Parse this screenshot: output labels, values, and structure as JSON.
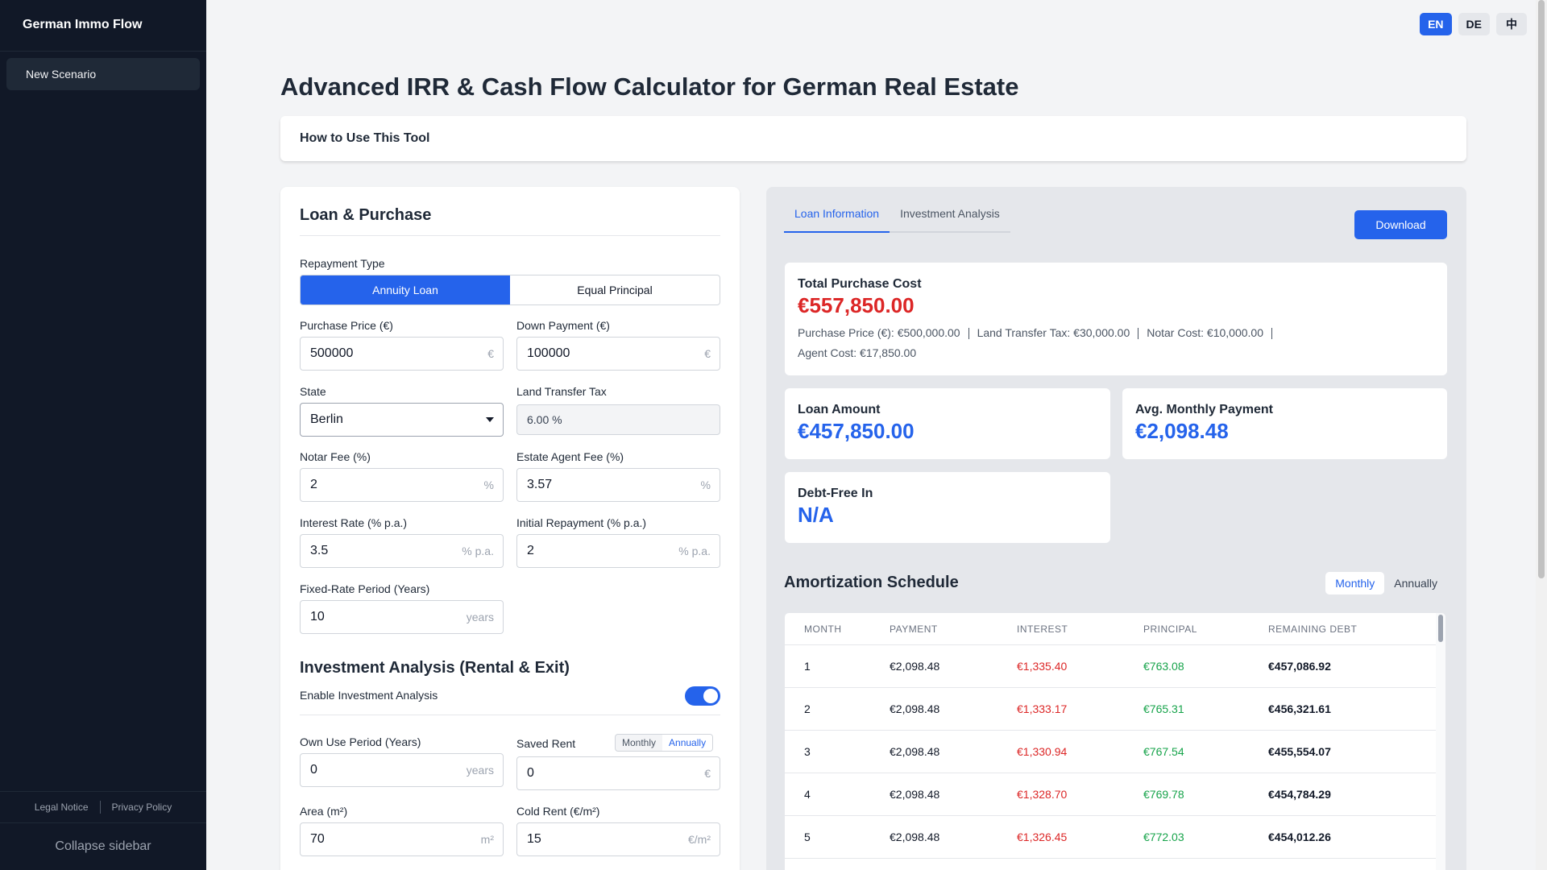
{
  "sidebar": {
    "app_title": "German Immo Flow",
    "items": [
      {
        "label": "New Scenario"
      }
    ],
    "legal_notice": "Legal Notice",
    "privacy_policy": "Privacy Policy",
    "collapse": "Collapse sidebar"
  },
  "lang": {
    "en": "EN",
    "de": "DE",
    "zh": "中",
    "active": "EN"
  },
  "page_title": "Advanced IRR & Cash Flow Calculator for German Real Estate",
  "howto": "How to Use This Tool",
  "loan": {
    "section_title": "Loan & Purchase",
    "repayment_type_label": "Repayment Type",
    "repayment_options": [
      "Annuity Loan",
      "Equal Principal"
    ],
    "repayment_selected": "Annuity Loan",
    "purchase_price_label": "Purchase Price (€)",
    "purchase_price": "500000",
    "purchase_price_suffix": "€",
    "down_payment_label": "Down Payment (€)",
    "down_payment": "100000",
    "down_payment_suffix": "€",
    "state_label": "State",
    "state": "Berlin",
    "land_tax_label": "Land Transfer Tax",
    "land_tax": "6.00 %",
    "notar_label": "Notar Fee (%)",
    "notar": "2",
    "notar_suffix": "%",
    "agent_label": "Estate Agent Fee (%)",
    "agent": "3.57",
    "agent_suffix": "%",
    "interest_label": "Interest Rate (% p.a.)",
    "interest": "3.5",
    "interest_suffix": "% p.a.",
    "repayment_label": "Initial Repayment (% p.a.)",
    "repayment": "2",
    "repayment_suffix": "% p.a.",
    "fixed_label": "Fixed-Rate Period (Years)",
    "fixed": "10",
    "fixed_suffix": "years"
  },
  "investment": {
    "section_title": "Investment Analysis (Rental & Exit)",
    "enable_label": "Enable Investment Analysis",
    "enabled": true,
    "own_use_label": "Own Use Period (Years)",
    "own_use": "0",
    "own_use_suffix": "years",
    "saved_rent_label": "Saved Rent",
    "saved_rent_toggle": [
      "Monthly",
      "Annually"
    ],
    "saved_rent_toggle_selected": "Annually",
    "saved_rent": "0",
    "saved_rent_suffix": "€",
    "area_label": "Area (m²)",
    "area": "70",
    "area_suffix": "m²",
    "cold_rent_label": "Cold Rent (€/m²)",
    "cold_rent": "15",
    "cold_rent_suffix": "€/m²"
  },
  "results": {
    "tabs": [
      "Loan Information",
      "Investment Analysis"
    ],
    "active_tab": "Loan Information",
    "download": "Download",
    "total_cost_title": "Total Purchase Cost",
    "total_cost": "€557,850.00",
    "breakdown": [
      "Purchase Price (€): €500,000.00",
      "Land Transfer Tax: €30,000.00",
      "Notar Cost: €10,000.00",
      "Agent Cost: €17,850.00"
    ],
    "loan_amount_title": "Loan Amount",
    "loan_amount": "€457,850.00",
    "avg_payment_title": "Avg. Monthly Payment",
    "avg_payment": "€2,098.48",
    "debt_free_title": "Debt-Free In",
    "debt_free": "N/A",
    "colors": {
      "accent": "#2563eb",
      "negative": "#dc2626",
      "positive": "#16a34a"
    }
  },
  "amortization": {
    "title": "Amortization Schedule",
    "toggle": [
      "Monthly",
      "Annually"
    ],
    "toggle_selected": "Monthly",
    "headers": [
      "MONTH",
      "PAYMENT",
      "INTEREST",
      "PRINCIPAL",
      "REMAINING DEBT"
    ],
    "rows": [
      [
        "1",
        "€2,098.48",
        "€1,335.40",
        "€763.08",
        "€457,086.92"
      ],
      [
        "2",
        "€2,098.48",
        "€1,333.17",
        "€765.31",
        "€456,321.61"
      ],
      [
        "3",
        "€2,098.48",
        "€1,330.94",
        "€767.54",
        "€455,554.07"
      ],
      [
        "4",
        "€2,098.48",
        "€1,328.70",
        "€769.78",
        "€454,784.29"
      ],
      [
        "5",
        "€2,098.48",
        "€1,326.45",
        "€772.03",
        "€454,012.26"
      ]
    ]
  }
}
